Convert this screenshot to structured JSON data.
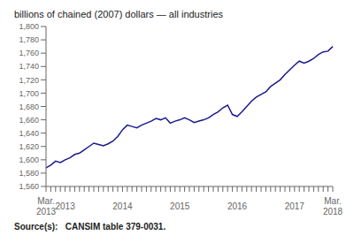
{
  "chart_data": {
    "type": "line",
    "title": "billions of chained (2007) dollars — all industries",
    "source": "Source(s):   CANSIM table 379-0031.",
    "color": "#1a1a8c",
    "grid": false,
    "categories": [
      null,
      null,
      null,
      null,
      "2013",
      null,
      null,
      null,
      null,
      null,
      null,
      null,
      null,
      null,
      null,
      null,
      "2014",
      null,
      null,
      null,
      null,
      null,
      null,
      null,
      null,
      null,
      null,
      null,
      "2015",
      null,
      null,
      null,
      null,
      null,
      null,
      null,
      null,
      null,
      null,
      null,
      "2016",
      null,
      null,
      null,
      null,
      null,
      null,
      null,
      null,
      null,
      null,
      null,
      "2017",
      null,
      null,
      null,
      null,
      null,
      null,
      null,
      null
    ],
    "annotations": [
      {
        "x": 0,
        "text": [
          "Mar.",
          "2013"
        ]
      },
      {
        "x": 60,
        "text": [
          "Mar.",
          "2018"
        ]
      }
    ],
    "values": [
      1588,
      1592,
      1598,
      1596,
      1600,
      1603,
      1608,
      1610,
      1615,
      1620,
      1625,
      1623,
      1621,
      1624,
      1628,
      1635,
      1645,
      1652,
      1650,
      1648,
      1652,
      1655,
      1658,
      1662,
      1660,
      1663,
      1655,
      1658,
      1660,
      1663,
      1660,
      1656,
      1658,
      1660,
      1663,
      1668,
      1672,
      1678,
      1682,
      1668,
      1665,
      1672,
      1680,
      1688,
      1694,
      1698,
      1702,
      1710,
      1715,
      1720,
      1728,
      1735,
      1742,
      1748,
      1745,
      1748,
      1752,
      1758,
      1762,
      1763,
      1770
    ],
    "ylim": [
      1560,
      1800
    ],
    "yticks": [
      {
        "value": 1560,
        "label": "1,560"
      },
      {
        "value": 1580,
        "label": "1,580"
      },
      {
        "value": 1600,
        "label": "1,600"
      },
      {
        "value": 1620,
        "label": "1,620"
      },
      {
        "value": 1640,
        "label": "1,640"
      },
      {
        "value": 1660,
        "label": "1,660"
      },
      {
        "value": 1680,
        "label": "1,680"
      },
      {
        "value": 1700,
        "label": "1,700"
      },
      {
        "value": 1720,
        "label": "1,720"
      },
      {
        "value": 1740,
        "label": "1,740"
      },
      {
        "value": 1760,
        "label": "1,760"
      },
      {
        "value": 1780,
        "label": "1,780"
      },
      {
        "value": 1800,
        "label": "1,800"
      }
    ]
  }
}
